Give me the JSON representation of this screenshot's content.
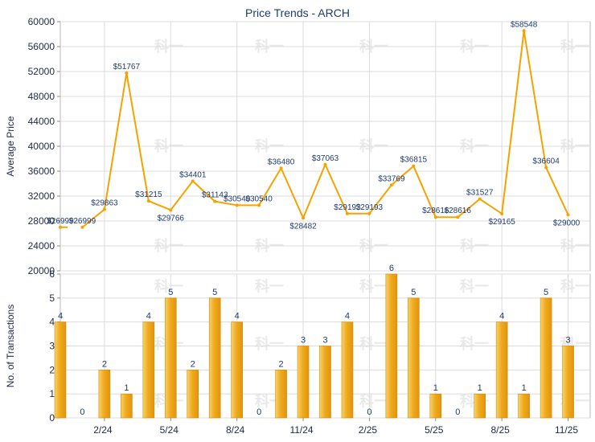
{
  "chart_data": [
    {
      "type": "line",
      "title": "Price Trends - ARCH",
      "ylabel": "Average Price",
      "ylim": [
        20000,
        60000
      ],
      "yticks": [
        20000,
        24000,
        28000,
        32000,
        36000,
        40000,
        44000,
        48000,
        52000,
        56000,
        60000
      ],
      "grid": true,
      "line_color": "#f5a300",
      "x": [
        0,
        1,
        2,
        3,
        4,
        5,
        6,
        7,
        8,
        9,
        10,
        11,
        12,
        13,
        14,
        15,
        16,
        17,
        18,
        19,
        20,
        21,
        22,
        23,
        24
      ],
      "values": [
        26999,
        26999,
        29863,
        51767,
        31215,
        29766,
        34401,
        31143,
        30540,
        30540,
        36480,
        28482,
        37063,
        29193,
        29193,
        33769,
        36815,
        28616,
        28616,
        31527,
        29165,
        58548,
        36604,
        29000,
        null
      ],
      "data_labels": [
        "$26999",
        "$26999",
        "$29863",
        "$51767",
        "$31215",
        "$29766",
        "$34401",
        "$31143",
        "$30540",
        "$30540",
        "$36480",
        "$28482",
        "$37063",
        "$29193",
        "$29193",
        "$33769",
        "$36815",
        "$28616",
        "$28616",
        "$31527",
        "$29165",
        "$58548",
        "$36604",
        "$29000",
        ""
      ],
      "watermark": "科一"
    },
    {
      "type": "bar",
      "ylabel": "No. of Transactions",
      "ylim": [
        0,
        6
      ],
      "yticks": [
        0,
        1,
        2,
        3,
        4,
        5,
        6
      ],
      "grid": true,
      "bar_color": "#f0aa1e",
      "categories": [
        "",
        "",
        "2/24",
        "",
        "",
        "5/24",
        "",
        "",
        "8/24",
        "",
        "",
        "11/24",
        "",
        "",
        "2/25",
        "",
        "",
        "5/25",
        "",
        "",
        "8/25",
        "",
        "",
        "11/25",
        ""
      ],
      "values": [
        4,
        0,
        2,
        1,
        4,
        5,
        2,
        5,
        4,
        0,
        2,
        3,
        3,
        4,
        0,
        6,
        5,
        1,
        0,
        1,
        4,
        1,
        5,
        3,
        null
      ],
      "data_labels": [
        "4",
        "0",
        "2",
        "1",
        "4",
        "5",
        "2",
        "5",
        "4",
        "0",
        "2",
        "3",
        "3",
        "4",
        "0",
        "6",
        "5",
        "1",
        "0",
        "1",
        "4",
        "1",
        "5",
        "3",
        ""
      ],
      "watermark": "科一"
    }
  ]
}
